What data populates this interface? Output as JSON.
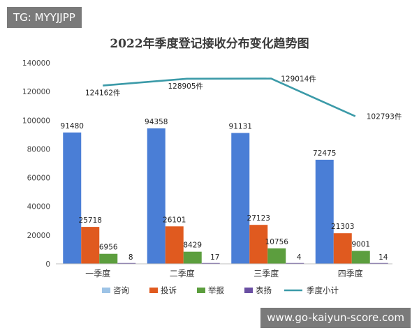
{
  "badge": "TG: MYYJJPP",
  "watermark": "www.go-kaiyun-score.com",
  "colors": {
    "咨询": "#9dc3e6",
    "投诉": "#e05a1f",
    "举报": "#5c9e3e",
    "表扬": "#6a4fa3",
    "季度小计": "#3b9aa8",
    "咨询_bar": "#4a7ed6"
  },
  "chart_data": {
    "type": "bar",
    "title": "2022年季度登记接收分布变化趋势图",
    "categories": [
      "一季度",
      "二季度",
      "三季度",
      "四季度"
    ],
    "ylim": [
      0,
      140000
    ],
    "yticks": [
      0,
      20000,
      40000,
      60000,
      80000,
      100000,
      120000,
      140000
    ],
    "grid": false,
    "legend_position": "bottom",
    "series": [
      {
        "name": "咨询",
        "values": [
          91480,
          94358,
          91131,
          72475
        ],
        "labels": [
          "91480",
          "94358",
          "91131",
          "72475"
        ]
      },
      {
        "name": "投诉",
        "values": [
          25718,
          26101,
          27123,
          21303
        ],
        "labels": [
          "25718",
          "26101",
          "27123",
          "21303"
        ]
      },
      {
        "name": "举报",
        "values": [
          6956,
          8429,
          10756,
          9001
        ],
        "labels": [
          "6956",
          "8429",
          "10756",
          "9001"
        ]
      },
      {
        "name": "表扬",
        "values": [
          8,
          17,
          4,
          14
        ],
        "labels": [
          "8",
          "17",
          "4",
          "14"
        ]
      }
    ],
    "line_series": {
      "name": "季度小计",
      "values": [
        124162,
        128905,
        129014,
        102793
      ],
      "labels": [
        "124162件",
        "128905件",
        "129014件",
        "102793件"
      ]
    }
  }
}
